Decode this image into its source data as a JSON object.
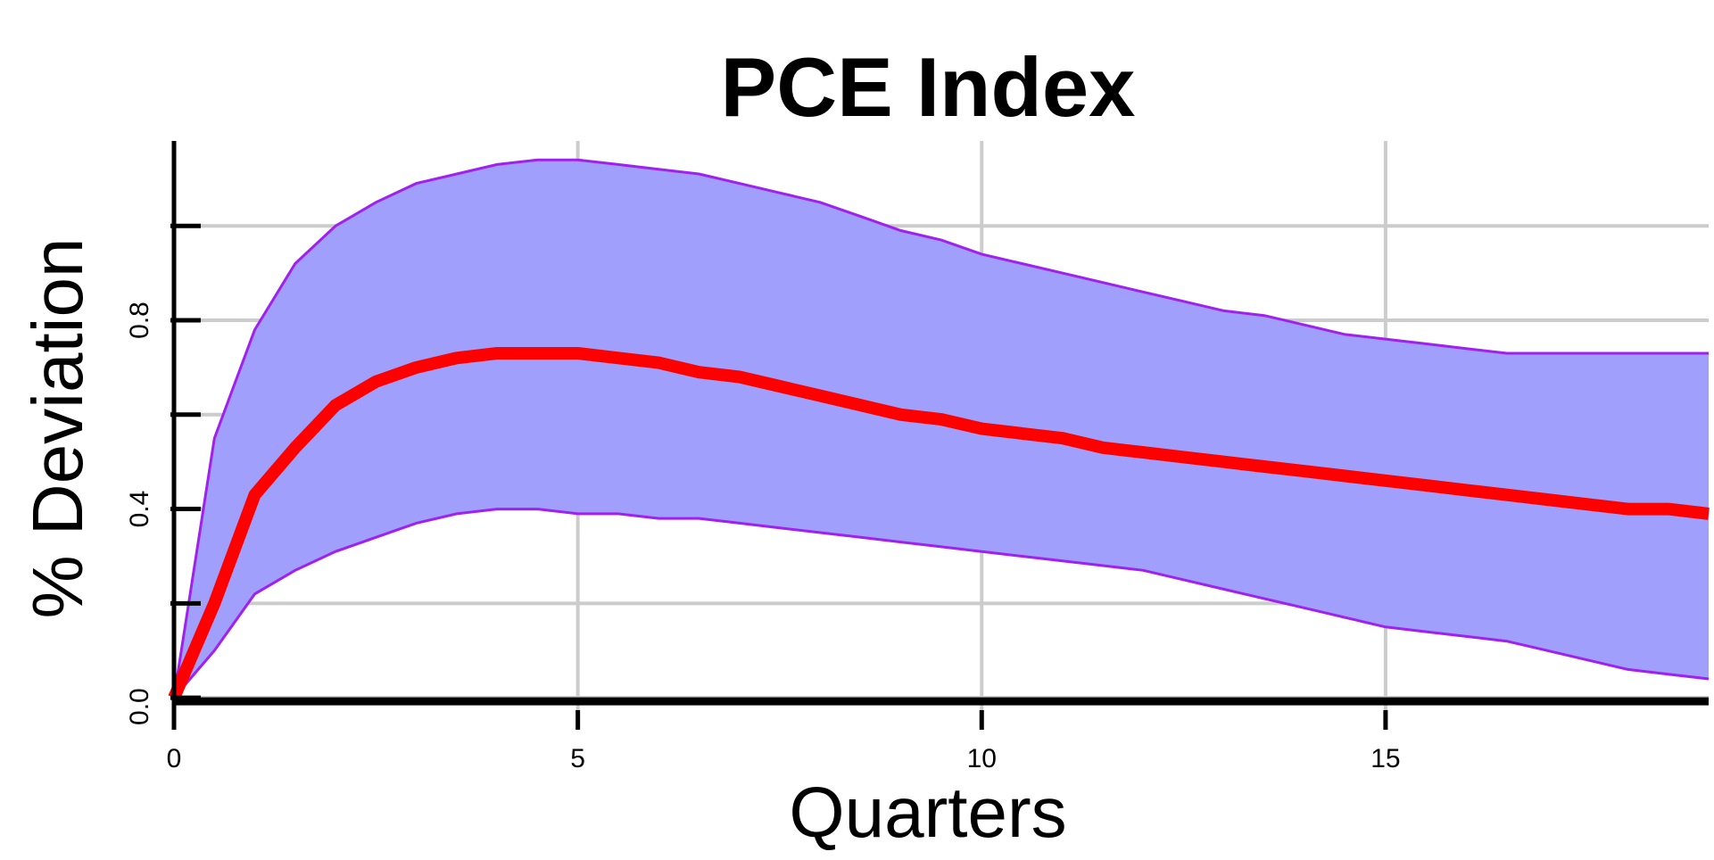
{
  "chart_data": {
    "type": "area",
    "title": "PCE Index",
    "xlabel": "Quarters",
    "ylabel": "% Deviation",
    "xlim": [
      0,
      19
    ],
    "ylim": [
      -0.03,
      1.18
    ],
    "x_ticks": [
      0,
      5,
      10,
      15
    ],
    "x_tick_labels": [
      "0",
      "5",
      "10",
      "15"
    ],
    "y_ticks": [
      0.0,
      0.2,
      0.4,
      0.6,
      0.8,
      1.0
    ],
    "y_tick_labels": [
      "0.0",
      "",
      "0.4",
      "",
      "0.8",
      ""
    ],
    "grid": true,
    "legend": "none",
    "x": [
      0,
      0.5,
      1,
      1.5,
      2,
      2.5,
      3,
      3.5,
      4,
      4.5,
      5,
      5.5,
      6,
      6.5,
      7,
      7.5,
      8,
      8.5,
      9,
      9.5,
      10,
      10.5,
      11,
      11.5,
      12,
      12.5,
      13,
      13.5,
      14,
      14.5,
      15,
      15.5,
      16,
      16.5,
      17,
      17.5,
      18,
      18.5,
      19
    ],
    "series": [
      {
        "role": "upper band",
        "color": "#a020f0",
        "values": [
          0.0,
          0.55,
          0.78,
          0.92,
          1.0,
          1.05,
          1.09,
          1.11,
          1.13,
          1.14,
          1.14,
          1.13,
          1.12,
          1.11,
          1.09,
          1.07,
          1.05,
          1.02,
          0.99,
          0.97,
          0.94,
          0.92,
          0.9,
          0.88,
          0.86,
          0.84,
          0.82,
          0.81,
          0.79,
          0.77,
          0.76,
          0.75,
          0.74,
          0.73,
          0.73,
          0.73,
          0.73,
          0.73,
          0.73
        ]
      },
      {
        "role": "point estimate",
        "color": "#ff0000",
        "values": [
          0.0,
          0.2,
          0.43,
          0.53,
          0.62,
          0.67,
          0.7,
          0.72,
          0.73,
          0.73,
          0.73,
          0.72,
          0.71,
          0.69,
          0.68,
          0.66,
          0.64,
          0.62,
          0.6,
          0.59,
          0.57,
          0.56,
          0.55,
          0.53,
          0.52,
          0.51,
          0.5,
          0.49,
          0.48,
          0.47,
          0.46,
          0.45,
          0.44,
          0.43,
          0.42,
          0.41,
          0.4,
          0.4,
          0.39
        ]
      },
      {
        "role": "lower band",
        "color": "#a020f0",
        "values": [
          0.0,
          0.1,
          0.22,
          0.27,
          0.31,
          0.34,
          0.37,
          0.39,
          0.4,
          0.4,
          0.39,
          0.39,
          0.38,
          0.38,
          0.37,
          0.36,
          0.35,
          0.34,
          0.33,
          0.32,
          0.31,
          0.3,
          0.29,
          0.28,
          0.27,
          0.25,
          0.23,
          0.21,
          0.19,
          0.17,
          0.15,
          0.14,
          0.13,
          0.12,
          0.1,
          0.08,
          0.06,
          0.05,
          0.04
        ]
      }
    ],
    "colors": {
      "band_fill": "#a0a0fc",
      "band_edge": "#a020f0",
      "line": "#ff0000",
      "grid": "#cccccc",
      "zero_line": "#000000"
    }
  }
}
